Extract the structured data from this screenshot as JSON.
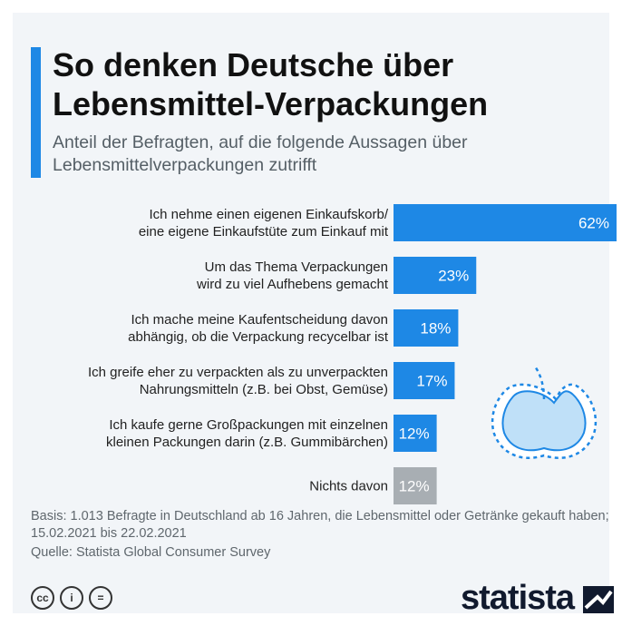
{
  "title": "So denken Deutsche über Lebensmittel-Verpackungen",
  "subtitle": "Anteil der Befragten, auf die folgende Aussagen über Lebensmittelverpackungen zutrifft",
  "chart_data": {
    "type": "bar",
    "orientation": "horizontal",
    "title": "So denken Deutsche über Lebensmittel-Verpackungen",
    "subtitle": "Anteil der Befragten, auf die folgende Aussagen über Lebensmittelverpackungen zutrifft",
    "xlim": [
      0,
      62
    ],
    "grid": false,
    "categories": [
      [
        "Ich nehme einen eigenen Einkaufskorb/",
        "eine eigene Einkaufstüte zum Einkauf mit"
      ],
      [
        "Um das Thema Verpackungen",
        "wird zu viel Aufhebens gemacht"
      ],
      [
        "Ich mache meine Kaufentscheidung davon",
        "abhängig, ob die Verpackung recycelbar ist"
      ],
      [
        "Ich greife eher zu verpackten als zu unverpackten",
        "Nahrungsmitteln (z.B. bei Obst, Gemüse)"
      ],
      [
        "Ich kaufe gerne Großpackungen mit einzelnen",
        "kleinen Packungen darin (z.B. Gummibärchen)"
      ],
      [
        "Nichts davon"
      ]
    ],
    "values": [
      62,
      23,
      18,
      17,
      12,
      12
    ],
    "value_labels": [
      "62%",
      "23%",
      "18%",
      "17%",
      "12%",
      "12%"
    ],
    "colors": [
      "#1e88e5",
      "#1e88e5",
      "#1e88e5",
      "#1e88e5",
      "#1e88e5",
      "#a8aeb3"
    ]
  },
  "footer": {
    "basis": "Basis: 1.013 Befragte in Deutschland ab 16 Jahren, die Lebensmittel oder Getränke gekauft haben; 15.02.2021 bis 22.02.2021",
    "source": "Quelle: Statista Global Consumer Survey"
  },
  "license_icons": [
    {
      "icon": "cc-icon",
      "glyph": "cc"
    },
    {
      "icon": "attribution-icon",
      "glyph": "i"
    },
    {
      "icon": "no-derivatives-icon",
      "glyph": "="
    }
  ],
  "brand": "statista",
  "illustration": "apple-icon"
}
